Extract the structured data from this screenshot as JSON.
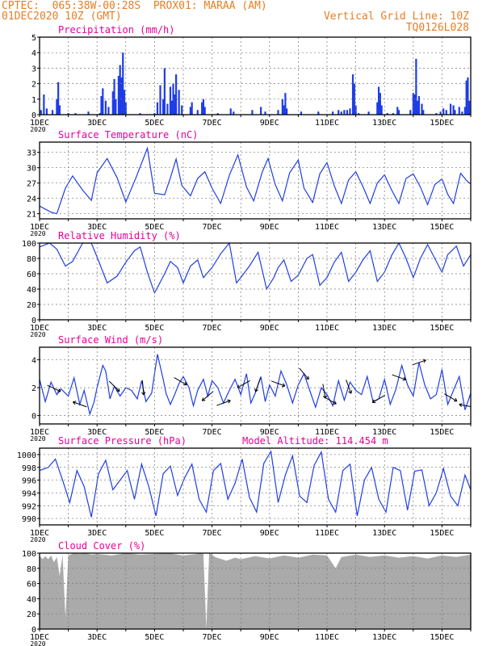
{
  "header": {
    "line1_left": "CPTEC:  065:38W-00:28S  PROX01: MARAA (AM)",
    "line2_left": "01DEC2020 10Z (GMT)",
    "line2_right": "Vertical Grid Line: 10Z",
    "line3_right": "TQ0126L028"
  },
  "colors": {
    "header": "#e67e22",
    "title": "#e6009a",
    "series": "#1f3de6",
    "cloud": "#aaaaaa",
    "arrow": "#000000"
  },
  "chart_data": [
    {
      "id": "precip",
      "type": "bar",
      "title": "Precipitation (mm/h)",
      "ylim": [
        0,
        5
      ],
      "yticks": [
        0,
        1,
        2,
        3,
        4,
        5
      ],
      "xlim": [
        0,
        15
      ],
      "xticks": [
        "1DEC",
        "3DEC",
        "5DEC",
        "7DEC",
        "9DEC",
        "11DEC",
        "13DEC",
        "15DEC"
      ],
      "xtick_step": 2,
      "x_sub_label": "2020",
      "grid": true,
      "values": [
        [
          0.05,
          0.3
        ],
        [
          0.15,
          1.3
        ],
        [
          0.25,
          0.4
        ],
        [
          0.45,
          0.3
        ],
        [
          0.6,
          1.0
        ],
        [
          0.65,
          2.1
        ],
        [
          0.7,
          0.6
        ],
        [
          1.0,
          0.1
        ],
        [
          1.25,
          0.1
        ],
        [
          1.7,
          0.2
        ],
        [
          2.1,
          0.1
        ],
        [
          2.15,
          1.2
        ],
        [
          2.2,
          1.7
        ],
        [
          2.3,
          0.9
        ],
        [
          2.4,
          0.5
        ],
        [
          2.55,
          1.5
        ],
        [
          2.6,
          2.3
        ],
        [
          2.65,
          1.0
        ],
        [
          2.75,
          2.5
        ],
        [
          2.8,
          3.2
        ],
        [
          2.85,
          2.4
        ],
        [
          2.9,
          4.0
        ],
        [
          2.95,
          1.6
        ],
        [
          3.0,
          0.8
        ],
        [
          3.5,
          0.1
        ],
        [
          4.0,
          0.1
        ],
        [
          4.1,
          0.8
        ],
        [
          4.2,
          1.9
        ],
        [
          4.3,
          1.0
        ],
        [
          4.35,
          3.0
        ],
        [
          4.45,
          0.7
        ],
        [
          4.55,
          1.8
        ],
        [
          4.6,
          0.9
        ],
        [
          4.65,
          2.0
        ],
        [
          4.7,
          1.3
        ],
        [
          4.75,
          2.6
        ],
        [
          4.85,
          1.6
        ],
        [
          4.95,
          0.6
        ],
        [
          5.25,
          0.5
        ],
        [
          5.3,
          0.8
        ],
        [
          5.5,
          0.3
        ],
        [
          5.65,
          0.8
        ],
        [
          5.7,
          1.0
        ],
        [
          5.75,
          0.5
        ],
        [
          6.2,
          0.1
        ],
        [
          6.65,
          0.4
        ],
        [
          6.75,
          0.2
        ],
        [
          7.4,
          0.3
        ],
        [
          7.7,
          0.5
        ],
        [
          7.85,
          0.2
        ],
        [
          8.3,
          0.3
        ],
        [
          8.45,
          1.0
        ],
        [
          8.5,
          0.6
        ],
        [
          8.55,
          1.4
        ],
        [
          8.6,
          0.4
        ],
        [
          9.1,
          0.2
        ],
        [
          9.7,
          0.2
        ],
        [
          10.2,
          0.2
        ],
        [
          10.4,
          0.3
        ],
        [
          10.5,
          0.2
        ],
        [
          10.6,
          0.3
        ],
        [
          10.7,
          0.3
        ],
        [
          10.8,
          0.4
        ],
        [
          10.9,
          2.6
        ],
        [
          10.95,
          2.0
        ],
        [
          11.0,
          0.6
        ],
        [
          11.1,
          0.1
        ],
        [
          11.45,
          0.2
        ],
        [
          11.75,
          0.8
        ],
        [
          11.8,
          1.8
        ],
        [
          11.85,
          1.4
        ],
        [
          11.9,
          0.6
        ],
        [
          12.1,
          0.1
        ],
        [
          12.3,
          0.1
        ],
        [
          12.45,
          0.5
        ],
        [
          12.5,
          0.3
        ],
        [
          12.9,
          0.3
        ],
        [
          13.0,
          1.4
        ],
        [
          13.05,
          1.3
        ],
        [
          13.1,
          3.6
        ],
        [
          13.15,
          0.9
        ],
        [
          13.2,
          1.2
        ],
        [
          13.3,
          0.7
        ],
        [
          13.35,
          0.3
        ],
        [
          13.8,
          0.1
        ],
        [
          13.95,
          0.2
        ],
        [
          14.05,
          0.4
        ],
        [
          14.15,
          0.3
        ],
        [
          14.3,
          0.7
        ],
        [
          14.4,
          0.6
        ],
        [
          14.45,
          0.3
        ],
        [
          14.6,
          0.5
        ],
        [
          14.7,
          0.2
        ],
        [
          14.8,
          0.5
        ],
        [
          14.85,
          2.2
        ],
        [
          14.9,
          2.4
        ],
        [
          14.95,
          0.9
        ]
      ]
    },
    {
      "id": "temp",
      "type": "line",
      "title": "Surface Temperature (nC)",
      "ylim": [
        20,
        35
      ],
      "yticks": [
        21,
        24,
        27,
        30,
        33
      ],
      "xlim": [
        0,
        15
      ],
      "xticks": [
        "1DEC",
        "3DEC",
        "5DEC",
        "7DEC",
        "9DEC",
        "11DEC",
        "13DEC",
        "15DEC"
      ],
      "xtick_step": 2,
      "x_sub_label": "2020",
      "grid": true,
      "x": [
        0,
        0.4,
        0.6,
        0.9,
        1.15,
        1.5,
        1.8,
        2.0,
        2.35,
        2.7,
        3.0,
        3.35,
        3.75,
        4.0,
        4.35,
        4.55,
        4.75,
        4.95,
        5.25,
        5.5,
        5.75,
        6.0,
        6.3,
        6.6,
        6.9,
        7.2,
        7.45,
        7.75,
        7.95,
        8.2,
        8.45,
        8.7,
        9.0,
        9.2,
        9.5,
        9.75,
        10.0,
        10.25,
        10.5,
        10.75,
        11.0,
        11.25,
        11.5,
        11.75,
        12.0,
        12.25,
        12.5,
        12.75,
        13.0,
        13.25,
        13.5,
        13.75,
        14.0,
        14.2,
        14.4,
        14.65,
        14.85,
        15.0
      ],
      "values": [
        22.5,
        21.3,
        21.0,
        26.0,
        28.4,
        25.6,
        23.6,
        29.0,
        31.8,
        28.0,
        23.3,
        28.0,
        33.8,
        25.0,
        24.7,
        28.0,
        31.7,
        26.5,
        24.5,
        27.9,
        29.2,
        26.0,
        23.0,
        28.5,
        32.5,
        26.2,
        23.5,
        29.2,
        31.8,
        26.7,
        23.5,
        29.0,
        31.5,
        26.0,
        23.2,
        28.8,
        31.0,
        26.5,
        23.0,
        27.6,
        29.2,
        26.3,
        23.0,
        27.0,
        28.6,
        25.6,
        23.0,
        27.9,
        28.8,
        26.2,
        22.8,
        26.7,
        27.8,
        24.8,
        23.0,
        28.9,
        27.5,
        26.8
      ]
    },
    {
      "id": "rh",
      "type": "line",
      "title": "Relative Humidity (%)",
      "ylim": [
        0,
        100
      ],
      "yticks": [
        0,
        20,
        40,
        60,
        80,
        100
      ],
      "xlim": [
        0,
        15
      ],
      "xticks": [
        "1DEC",
        "3DEC",
        "5DEC",
        "7DEC",
        "9DEC",
        "11DEC",
        "13DEC",
        "15DEC"
      ],
      "xtick_step": 2,
      "x_sub_label": "2020",
      "grid": true,
      "x": [
        0,
        0.35,
        0.6,
        0.9,
        1.15,
        1.5,
        1.8,
        2.0,
        2.35,
        2.7,
        3.0,
        3.3,
        3.5,
        3.75,
        4.0,
        4.35,
        4.55,
        4.8,
        5.0,
        5.25,
        5.5,
        5.7,
        6.0,
        6.3,
        6.6,
        6.85,
        7.0,
        7.3,
        7.6,
        7.9,
        8.15,
        8.3,
        8.5,
        8.75,
        9.0,
        9.3,
        9.5,
        9.75,
        10.0,
        10.25,
        10.5,
        10.75,
        11.0,
        11.25,
        11.5,
        11.75,
        12.0,
        12.25,
        12.5,
        12.75,
        13.0,
        13.25,
        13.5,
        13.75,
        14.0,
        14.2,
        14.5,
        14.75,
        15.0
      ],
      "values": [
        95,
        100,
        92,
        70,
        76,
        100,
        100,
        82,
        48,
        57,
        75,
        90,
        95,
        62,
        35,
        60,
        76,
        68,
        48,
        70,
        78,
        55,
        68,
        86,
        100,
        48,
        55,
        70,
        88,
        40,
        55,
        68,
        78,
        50,
        58,
        80,
        85,
        45,
        55,
        75,
        88,
        50,
        62,
        78,
        90,
        50,
        62,
        84,
        100,
        80,
        55,
        80,
        98,
        80,
        62,
        85,
        96,
        70,
        85
      ]
    },
    {
      "id": "wind",
      "type": "line",
      "title": "Surface Wind (m/s)",
      "ylim": [
        -0.6,
        4.9
      ],
      "yticks": [
        0,
        2,
        4
      ],
      "xlim": [
        0,
        15
      ],
      "xticks": [
        "1DEC",
        "3DEC",
        "5DEC",
        "7DEC",
        "9DEC",
        "11DEC",
        "13DEC",
        "15DEC"
      ],
      "xtick_step": 2,
      "x_sub_label": "2020",
      "grid": true,
      "x": [
        0,
        0.2,
        0.4,
        0.6,
        0.75,
        1.0,
        1.2,
        1.4,
        1.55,
        1.75,
        1.9,
        2.0,
        2.2,
        2.3,
        2.45,
        2.6,
        2.8,
        3.0,
        3.2,
        3.4,
        3.55,
        3.7,
        3.9,
        4.1,
        4.3,
        4.4,
        4.55,
        4.7,
        4.85,
        5.0,
        5.2,
        5.35,
        5.5,
        5.7,
        5.85,
        6.0,
        6.2,
        6.4,
        6.6,
        6.8,
        7.0,
        7.2,
        7.35,
        7.5,
        7.7,
        7.85,
        8.0,
        8.2,
        8.4,
        8.6,
        8.8,
        9.0,
        9.2,
        9.4,
        9.6,
        9.8,
        10.0,
        10.2,
        10.4,
        10.6,
        10.8,
        11.0,
        11.2,
        11.4,
        11.6,
        11.8,
        12.0,
        12.2,
        12.4,
        12.6,
        12.8,
        13.0,
        13.2,
        13.4,
        13.6,
        13.8,
        14.0,
        14.2,
        14.4,
        14.6,
        14.8,
        15.0
      ],
      "values": [
        2.6,
        1.0,
        2.4,
        1.5,
        1.9,
        1.4,
        2.7,
        0.8,
        1.8,
        0.1,
        1.0,
        2.0,
        3.6,
        3.2,
        1.2,
        2.1,
        1.4,
        2.0,
        1.8,
        1.2,
        2.5,
        1.0,
        1.6,
        4.4,
        2.6,
        1.6,
        0.8,
        1.5,
        2.3,
        2.8,
        2.0,
        0.7,
        1.8,
        2.6,
        1.4,
        2.5,
        2.0,
        0.9,
        1.8,
        2.6,
        1.5,
        3.0,
        0.9,
        1.6,
        2.8,
        1.0,
        2.2,
        1.4,
        3.2,
        2.2,
        0.9,
        2.2,
        3.0,
        1.8,
        0.6,
        2.0,
        1.5,
        0.7,
        2.5,
        1.1,
        2.4,
        1.8,
        1.5,
        2.8,
        1.0,
        1.2,
        2.6,
        0.8,
        1.9,
        3.6,
        2.2,
        1.4,
        3.8,
        2.2,
        1.2,
        1.5,
        3.3,
        0.8,
        1.8,
        2.8,
        0.4,
        1.6
      ],
      "vectors": [
        [
          0.5,
          -25
        ],
        [
          1.4,
          160
        ],
        [
          2.6,
          -45
        ],
        [
          3.6,
          -85
        ],
        [
          4.9,
          -30
        ],
        [
          5.85,
          -140
        ],
        [
          6.4,
          20
        ],
        [
          7.1,
          -150
        ],
        [
          7.6,
          -110
        ],
        [
          8.3,
          -20
        ],
        [
          9.2,
          -50
        ],
        [
          9.9,
          -80
        ],
        [
          10.1,
          -30
        ],
        [
          10.75,
          -70
        ],
        [
          11.8,
          -150
        ],
        [
          12.5,
          -20
        ],
        [
          13.2,
          20
        ],
        [
          14.3,
          -30
        ],
        [
          14.85,
          170
        ]
      ]
    },
    {
      "id": "pres",
      "type": "line",
      "title": "Surface Pressure (hPa)",
      "annotation": "Model Altitude: 114.454 m",
      "ylim": [
        989,
        1001
      ],
      "yticks": [
        990,
        992,
        994,
        996,
        998,
        1000
      ],
      "xlim": [
        0,
        15
      ],
      "xticks": [
        "1DEC",
        "3DEC",
        "5DEC",
        "7DEC",
        "9DEC",
        "11DEC",
        "13DEC",
        "15DEC"
      ],
      "xtick_step": 2,
      "x_sub_label": "2020",
      "grid": true,
      "x": [
        0,
        0.3,
        0.55,
        0.8,
        1.05,
        1.3,
        1.55,
        1.8,
        2.05,
        2.3,
        2.55,
        2.8,
        3.05,
        3.3,
        3.55,
        3.8,
        4.05,
        4.3,
        4.55,
        4.8,
        5.05,
        5.3,
        5.55,
        5.8,
        6.05,
        6.3,
        6.55,
        6.8,
        7.05,
        7.3,
        7.55,
        7.8,
        8.05,
        8.3,
        8.55,
        8.8,
        9.05,
        9.3,
        9.55,
        9.8,
        10.05,
        10.3,
        10.55,
        10.8,
        11.05,
        11.3,
        11.55,
        11.8,
        12.05,
        12.3,
        12.55,
        12.8,
        13.05,
        13.3,
        13.55,
        13.8,
        14.05,
        14.3,
        14.55,
        14.8,
        15.0
      ],
      "values": [
        997.5,
        998.0,
        999.3,
        996.0,
        992.5,
        997.5,
        995.0,
        990.2,
        997.0,
        999.1,
        994.5,
        996.0,
        997.5,
        993.0,
        998.5,
        995.0,
        990.4,
        997.0,
        998.2,
        993.6,
        996.4,
        998.5,
        993.0,
        991.0,
        997.5,
        998.6,
        993.0,
        995.5,
        999.3,
        993.3,
        991.0,
        998.6,
        1000.5,
        992.5,
        996.8,
        999.8,
        993.5,
        992.5,
        998.3,
        1000.4,
        993.0,
        991.0,
        997.5,
        998.5,
        990.4,
        996.0,
        998.0,
        993.0,
        991.0,
        998.0,
        997.5,
        991.3,
        997.4,
        997.6,
        992.0,
        994.0,
        997.8,
        993.5,
        992.0,
        996.8,
        994.5
      ]
    },
    {
      "id": "cloud",
      "type": "area",
      "title": "Cloud Cover (%)",
      "ylim": [
        0,
        100
      ],
      "yticks": [
        0,
        20,
        40,
        60,
        80,
        100
      ],
      "xlim": [
        0,
        15
      ],
      "xticks": [
        "1DEC",
        "3DEC",
        "5DEC",
        "7DEC",
        "9DEC",
        "11DEC",
        "13DEC",
        "15DEC"
      ],
      "xtick_step": 2,
      "x_sub_label": "2020",
      "grid": true,
      "x": [
        0,
        0.1,
        0.2,
        0.3,
        0.4,
        0.5,
        0.6,
        0.7,
        0.8,
        0.9,
        1.0,
        1.2,
        1.4,
        1.6,
        1.8,
        2.0,
        2.5,
        3.0,
        3.5,
        4.0,
        4.5,
        5.0,
        5.5,
        5.6,
        5.7,
        5.8,
        5.9,
        6.0,
        6.1,
        6.5,
        6.8,
        7.0,
        7.5,
        8.0,
        8.5,
        9.0,
        9.5,
        10.0,
        10.3,
        10.5,
        10.7,
        11.0,
        11.5,
        12.0,
        12.5,
        13.0,
        13.5,
        14.0,
        14.5,
        15.0
      ],
      "values": [
        97,
        92,
        96,
        92,
        97,
        88,
        95,
        70,
        98,
        15,
        97,
        100,
        99,
        100,
        98,
        99,
        97,
        100,
        98,
        99,
        100,
        97,
        99,
        100,
        99,
        1,
        100,
        98,
        95,
        90,
        94,
        92,
        96,
        93,
        97,
        94,
        98,
        97,
        80,
        95,
        96,
        98,
        95,
        97,
        94,
        96,
        93,
        97,
        95,
        98
      ]
    }
  ]
}
